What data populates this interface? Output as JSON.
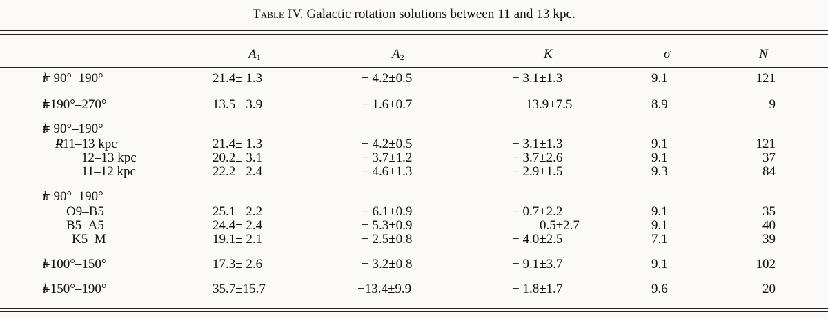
{
  "caption": {
    "prefix": "Table IV.",
    "text": "Galactic rotation solutions between 11 and 13 kpc."
  },
  "headers": [
    "A",
    "1",
    "A",
    "2",
    "K",
    "σ",
    "N"
  ],
  "rows": [
    {
      "label": "= 90°–190°",
      "A1": "21.4± 1.3",
      "A2": "− 4.2±0.5",
      "K": "− 3.1±1.3",
      "sigma": "9.1",
      "N": "121"
    },
    {
      "label": "=190°–270°",
      "A1": "13.5± 3.9",
      "A2": "− 1.6±0.7",
      "K": "13.9±7.5",
      "sigma": "8.9",
      "N": "9"
    },
    {
      "label": "= 90°–190°"
    },
    {
      "label": "=11–13 kpc",
      "A1": "21.4± 1.3",
      "A2": "− 4.2±0.5",
      "K": "− 3.1±1.3",
      "sigma": "9.1",
      "N": "121"
    },
    {
      "label": "12–13 kpc",
      "A1": "20.2± 3.1",
      "A2": "− 3.7±1.2",
      "K": "− 3.7±2.6",
      "sigma": "9.1",
      "N": "37"
    },
    {
      "label": "11–12 kpc",
      "A1": "22.2± 2.4",
      "A2": "− 4.6±1.3",
      "K": "− 2.9±1.5",
      "sigma": "9.3",
      "N": "84"
    },
    {
      "label": "= 90°–190°"
    },
    {
      "label": "O9–B5",
      "A1": "25.1± 2.2",
      "A2": "− 6.1±0.9",
      "K": "− 0.7±2.2",
      "sigma": "9.1",
      "N": "35"
    },
    {
      "label": "B5–A5",
      "A1": "24.4± 2.4",
      "A2": "− 5.3±0.9",
      "K": "0.5±2.7",
      "sigma": "9.1",
      "N": "40"
    },
    {
      "label": "K5–M",
      "A1": "19.1± 2.1",
      "A2": "− 2.5±0.8",
      "K": "− 4.0±2.5",
      "sigma": "7.1",
      "N": "39"
    },
    {
      "label": "=100°–150°",
      "A1": "17.3± 2.6",
      "A2": "− 3.2±0.8",
      "K": "− 9.1±3.7",
      "sigma": "9.1",
      "N": "102"
    },
    {
      "label": "=150°–190°",
      "A1": "35.7±15.7",
      "A2": "−13.4±9.9",
      "K": "− 1.8±1.7",
      "sigma": "9.6",
      "N": "20"
    }
  ],
  "symbols": {
    "l": "l",
    "sup": "II",
    "R": "R"
  }
}
